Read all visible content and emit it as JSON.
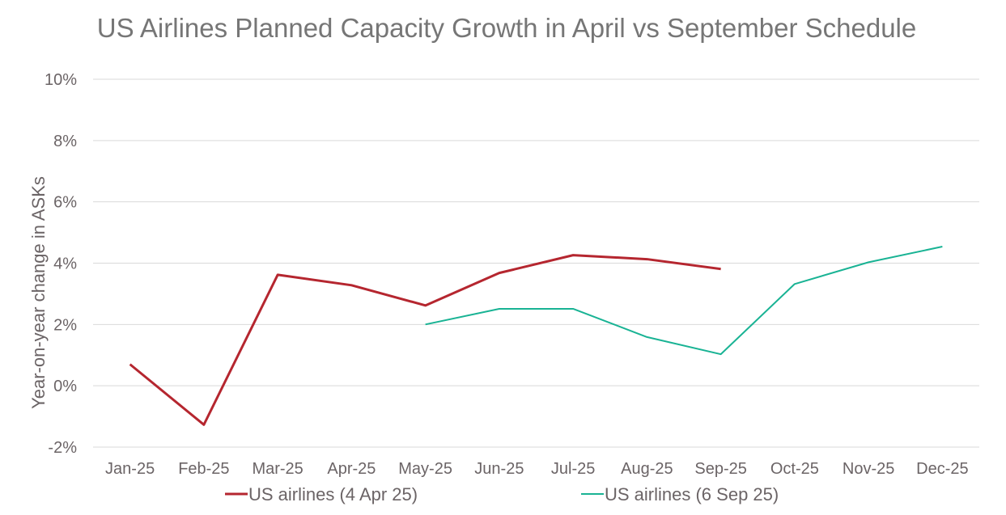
{
  "chart_data": {
    "type": "line",
    "title": "US Airlines Planned Capacity Growth in April vs September Schedule",
    "xlabel": "",
    "ylabel": "Year-on-year change in ASKs",
    "categories": [
      "Jan-25",
      "Feb-25",
      "Mar-25",
      "Apr-25",
      "May-25",
      "Jun-25",
      "Jul-25",
      "Aug-25",
      "Sep-25",
      "Oct-25",
      "Nov-25",
      "Dec-25"
    ],
    "ylim": [
      -2,
      10
    ],
    "yticks": [
      -2,
      0,
      2,
      4,
      6,
      8,
      10
    ],
    "ytick_labels": [
      "-2%",
      "0%",
      "2%",
      "4%",
      "6%",
      "8%",
      "10%"
    ],
    "grid": true,
    "legend_position": "bottom",
    "series": [
      {
        "name": "US airlines (4 Apr 25)",
        "color": "#b5262f",
        "values": [
          0.7,
          -1.27,
          3.62,
          3.28,
          2.62,
          3.68,
          4.26,
          4.13,
          3.81,
          null,
          null,
          null
        ]
      },
      {
        "name": "US airlines (6 Sep 25)",
        "color": "#19b394",
        "values": [
          null,
          null,
          null,
          null,
          2.0,
          2.51,
          2.51,
          1.59,
          1.03,
          3.32,
          4.03,
          4.54
        ]
      }
    ]
  }
}
